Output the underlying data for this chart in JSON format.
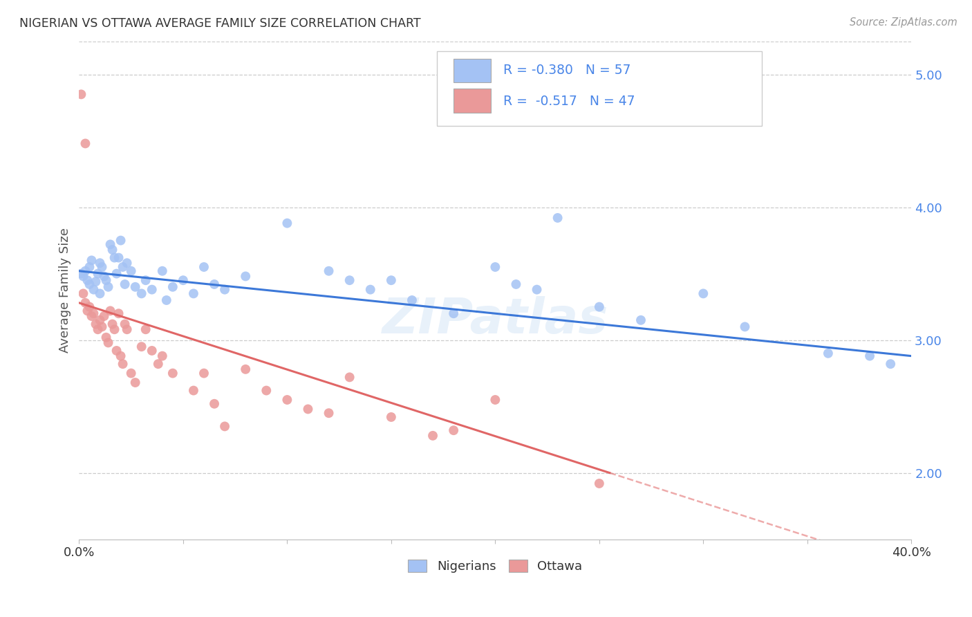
{
  "title": "NIGERIAN VS OTTAWA AVERAGE FAMILY SIZE CORRELATION CHART",
  "source": "Source: ZipAtlas.com",
  "ylabel": "Average Family Size",
  "xlim": [
    0.0,
    0.4
  ],
  "ylim": [
    1.5,
    5.25
  ],
  "yticks": [
    2.0,
    3.0,
    4.0,
    5.0
  ],
  "xticks": [
    0.0,
    0.05,
    0.1,
    0.15,
    0.2,
    0.25,
    0.3,
    0.35,
    0.4
  ],
  "xtick_labels": [
    "0.0%",
    "",
    "",
    "",
    "",
    "",
    "",
    "",
    "40.0%"
  ],
  "legend_line1": "R = -0.380   N = 57",
  "legend_line2": "R =  -0.517   N = 47",
  "blue_color": "#a4c2f4",
  "pink_color": "#ea9999",
  "blue_line_color": "#3c78d8",
  "pink_line_color": "#e06666",
  "right_axis_color": "#4a86e8",
  "blue_scatter": [
    [
      0.001,
      3.5
    ],
    [
      0.002,
      3.48
    ],
    [
      0.003,
      3.52
    ],
    [
      0.004,
      3.45
    ],
    [
      0.005,
      3.42
    ],
    [
      0.005,
      3.55
    ],
    [
      0.006,
      3.6
    ],
    [
      0.007,
      3.38
    ],
    [
      0.008,
      3.44
    ],
    [
      0.009,
      3.5
    ],
    [
      0.01,
      3.58
    ],
    [
      0.01,
      3.35
    ],
    [
      0.011,
      3.55
    ],
    [
      0.012,
      3.48
    ],
    [
      0.013,
      3.45
    ],
    [
      0.014,
      3.4
    ],
    [
      0.015,
      3.72
    ],
    [
      0.016,
      3.68
    ],
    [
      0.017,
      3.62
    ],
    [
      0.018,
      3.5
    ],
    [
      0.019,
      3.62
    ],
    [
      0.02,
      3.75
    ],
    [
      0.021,
      3.55
    ],
    [
      0.022,
      3.42
    ],
    [
      0.023,
      3.58
    ],
    [
      0.025,
      3.52
    ],
    [
      0.027,
      3.4
    ],
    [
      0.03,
      3.35
    ],
    [
      0.032,
      3.45
    ],
    [
      0.035,
      3.38
    ],
    [
      0.04,
      3.52
    ],
    [
      0.042,
      3.3
    ],
    [
      0.045,
      3.4
    ],
    [
      0.05,
      3.45
    ],
    [
      0.055,
      3.35
    ],
    [
      0.06,
      3.55
    ],
    [
      0.065,
      3.42
    ],
    [
      0.07,
      3.38
    ],
    [
      0.08,
      3.48
    ],
    [
      0.12,
      3.52
    ],
    [
      0.13,
      3.45
    ],
    [
      0.14,
      3.38
    ],
    [
      0.15,
      3.45
    ],
    [
      0.16,
      3.3
    ],
    [
      0.18,
      3.2
    ],
    [
      0.2,
      3.55
    ],
    [
      0.21,
      3.42
    ],
    [
      0.22,
      3.38
    ],
    [
      0.25,
      3.25
    ],
    [
      0.27,
      3.15
    ],
    [
      0.3,
      3.35
    ],
    [
      0.32,
      3.1
    ],
    [
      0.36,
      2.9
    ],
    [
      0.38,
      2.88
    ],
    [
      0.39,
      2.82
    ],
    [
      0.23,
      3.92
    ],
    [
      0.1,
      3.88
    ]
  ],
  "pink_scatter": [
    [
      0.001,
      4.85
    ],
    [
      0.003,
      4.48
    ],
    [
      0.002,
      3.35
    ],
    [
      0.003,
      3.28
    ],
    [
      0.004,
      3.22
    ],
    [
      0.005,
      3.25
    ],
    [
      0.006,
      3.18
    ],
    [
      0.007,
      3.2
    ],
    [
      0.008,
      3.12
    ],
    [
      0.009,
      3.08
    ],
    [
      0.01,
      3.15
    ],
    [
      0.011,
      3.1
    ],
    [
      0.012,
      3.18
    ],
    [
      0.013,
      3.02
    ],
    [
      0.014,
      2.98
    ],
    [
      0.015,
      3.22
    ],
    [
      0.016,
      3.12
    ],
    [
      0.017,
      3.08
    ],
    [
      0.018,
      2.92
    ],
    [
      0.019,
      3.2
    ],
    [
      0.02,
      2.88
    ],
    [
      0.021,
      2.82
    ],
    [
      0.022,
      3.12
    ],
    [
      0.023,
      3.08
    ],
    [
      0.025,
      2.75
    ],
    [
      0.027,
      2.68
    ],
    [
      0.03,
      2.95
    ],
    [
      0.032,
      3.08
    ],
    [
      0.035,
      2.92
    ],
    [
      0.038,
      2.82
    ],
    [
      0.04,
      2.88
    ],
    [
      0.045,
      2.75
    ],
    [
      0.055,
      2.62
    ],
    [
      0.06,
      2.75
    ],
    [
      0.065,
      2.52
    ],
    [
      0.08,
      2.78
    ],
    [
      0.09,
      2.62
    ],
    [
      0.1,
      2.55
    ],
    [
      0.13,
      2.72
    ],
    [
      0.15,
      2.42
    ],
    [
      0.17,
      2.28
    ],
    [
      0.2,
      2.55
    ],
    [
      0.25,
      1.92
    ],
    [
      0.12,
      2.45
    ],
    [
      0.07,
      2.35
    ],
    [
      0.11,
      2.48
    ],
    [
      0.18,
      2.32
    ]
  ],
  "watermark_text": "ZIPatlas",
  "background_color": "#ffffff",
  "grid_color": "#cccccc"
}
